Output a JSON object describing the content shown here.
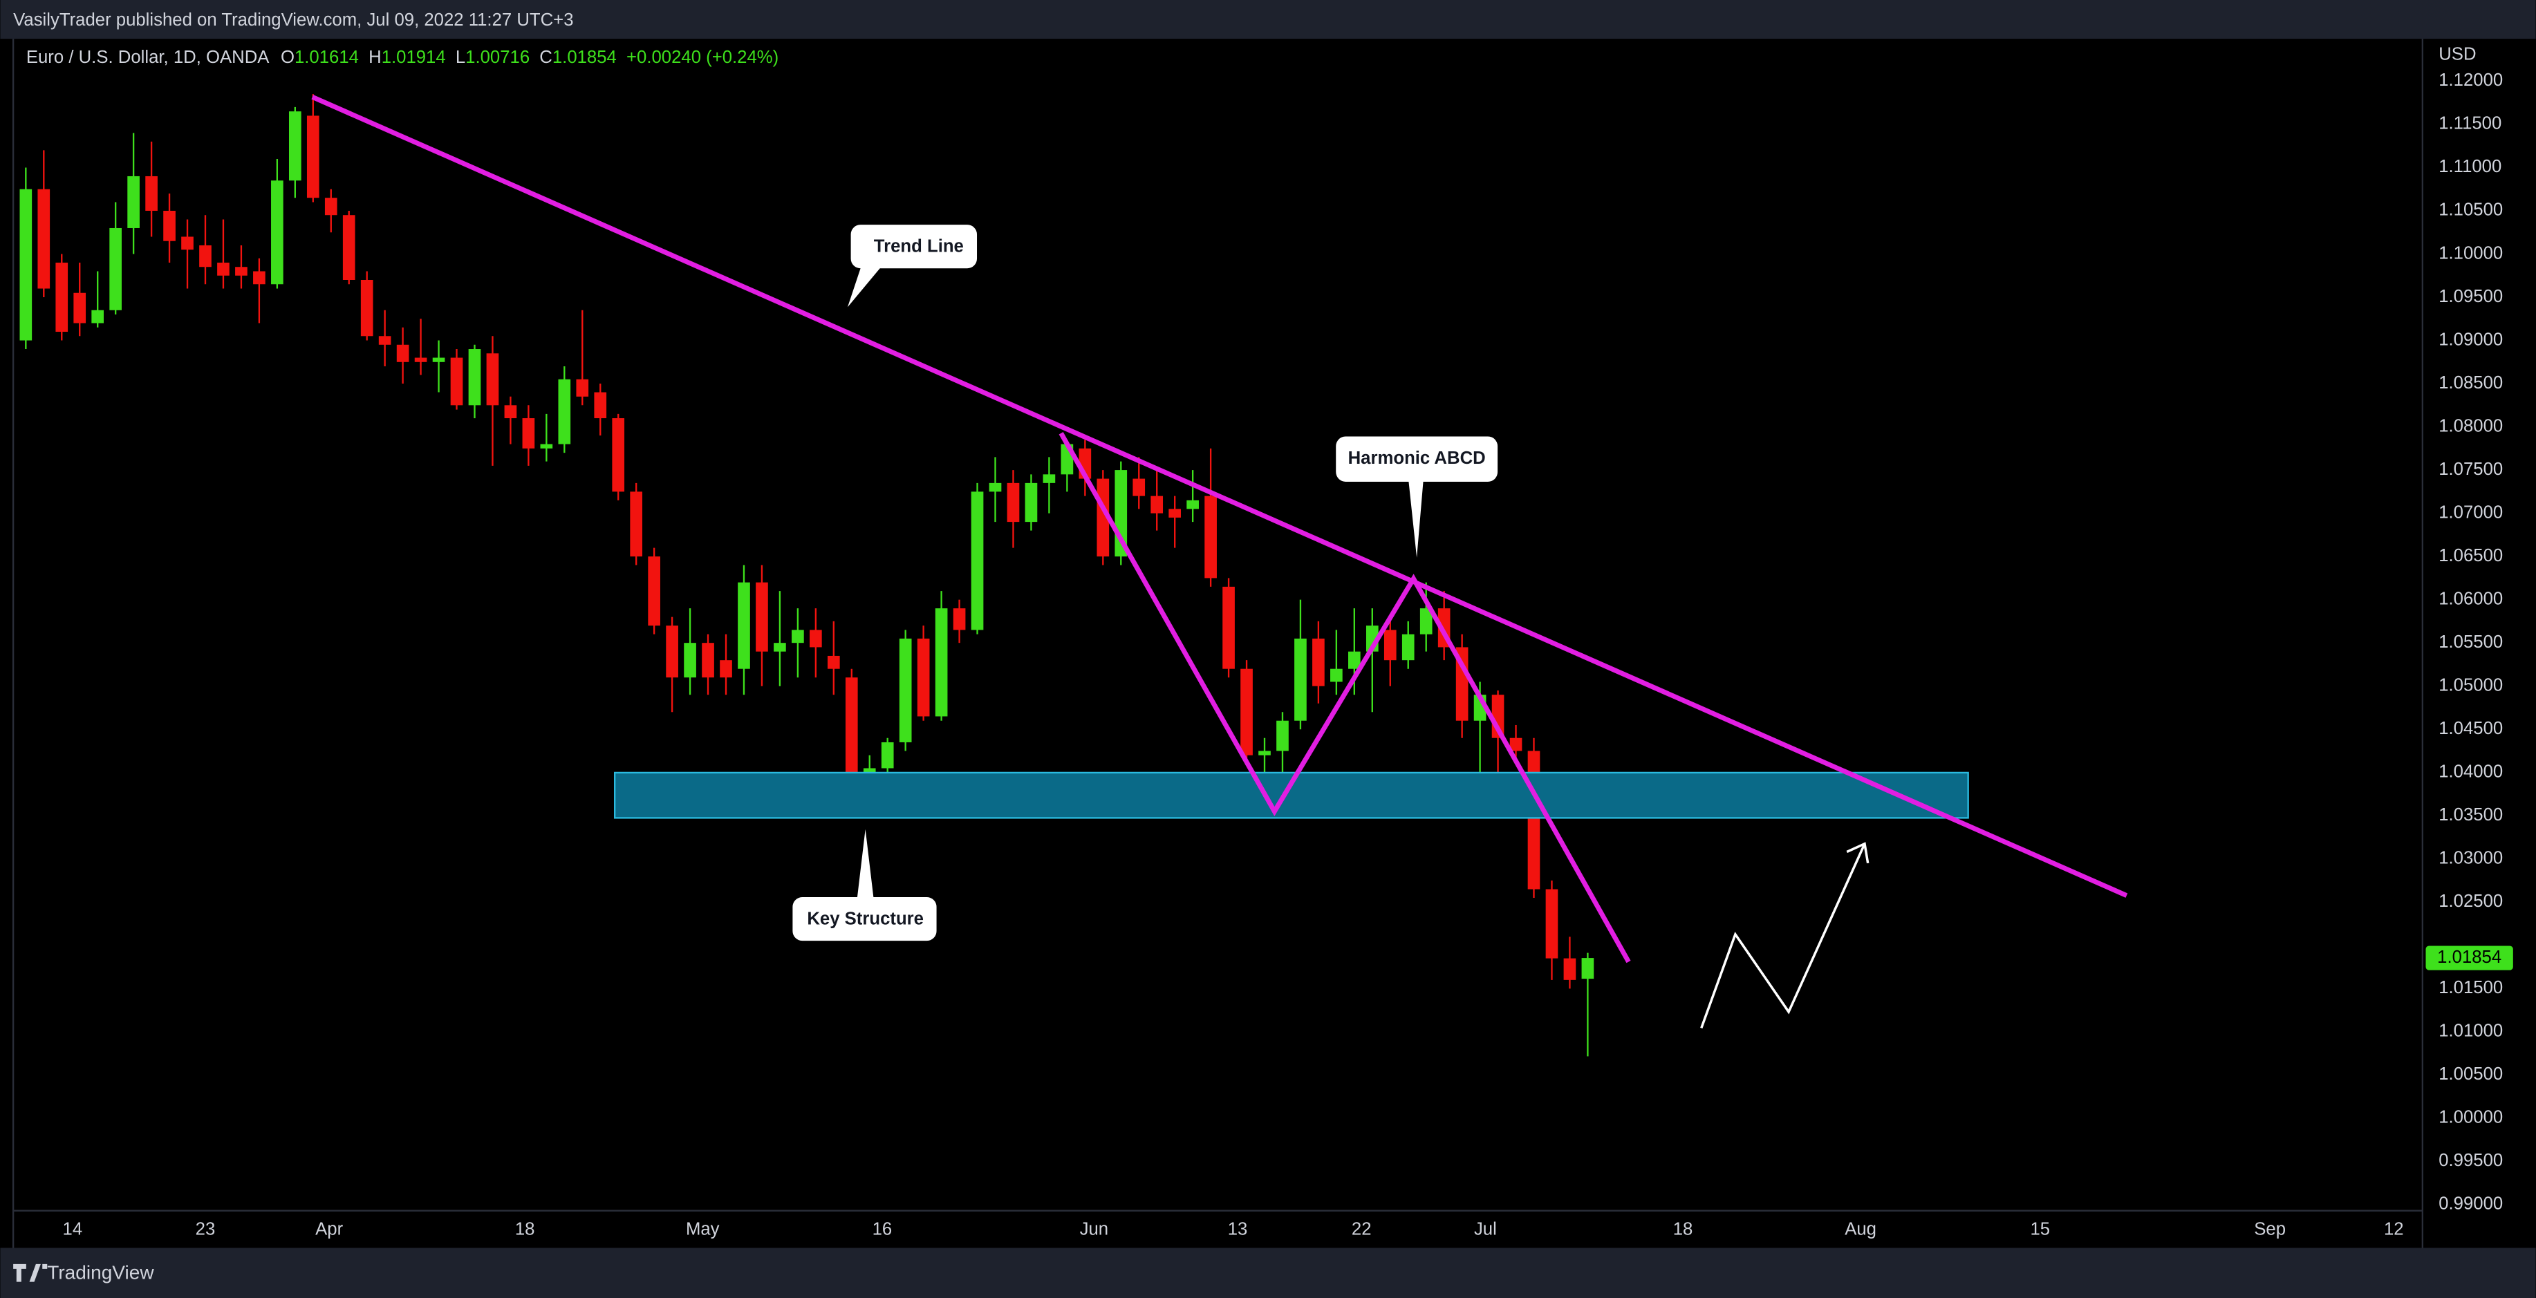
{
  "header": {
    "publisher": "VasilyTrader published on TradingView.com, Jul 09, 2022 11:27 UTC+3",
    "brand": "TradingView"
  },
  "chart_data": {
    "type": "candlestick",
    "title": "Euro / U.S. Dollar, 1D, OANDA",
    "ohlc_keys": [
      "O",
      "H",
      "L",
      "C"
    ],
    "change": "+0.00240 (+0.24%)",
    "currency": "USD",
    "up_color": "#3ee01c",
    "down_color": "#f2130f",
    "grid": false,
    "xlim": [
      -0.7,
      133.5
    ],
    "xticks": [
      {
        "value": 2.6,
        "label": "14"
      },
      {
        "value": 10.0,
        "label": "23"
      },
      {
        "value": 16.9,
        "label": "Apr"
      },
      {
        "value": 27.8,
        "label": "18"
      },
      {
        "value": 37.7,
        "label": "May"
      },
      {
        "value": 47.7,
        "label": "16"
      },
      {
        "value": 59.5,
        "label": "Jun"
      },
      {
        "value": 67.5,
        "label": "13"
      },
      {
        "value": 74.4,
        "label": "22"
      },
      {
        "value": 81.3,
        "label": "Jul"
      },
      {
        "value": 92.3,
        "label": "18"
      },
      {
        "value": 102.2,
        "label": "Aug"
      },
      {
        "value": 112.2,
        "label": "15"
      },
      {
        "value": 125.0,
        "label": "Sep"
      },
      {
        "value": 131.9,
        "label": "12"
      }
    ],
    "ylim": [
      0.9893,
      1.1249
    ],
    "yticks": [
      {
        "value": 1.12,
        "label": "1.12000"
      },
      {
        "value": 1.115,
        "label": "1.11500"
      },
      {
        "value": 1.11,
        "label": "1.11000"
      },
      {
        "value": 1.105,
        "label": "1.10500"
      },
      {
        "value": 1.1,
        "label": "1.10000"
      },
      {
        "value": 1.095,
        "label": "1.09500"
      },
      {
        "value": 1.09,
        "label": "1.09000"
      },
      {
        "value": 1.085,
        "label": "1.08500"
      },
      {
        "value": 1.08,
        "label": "1.08000"
      },
      {
        "value": 1.075,
        "label": "1.07500"
      },
      {
        "value": 1.07,
        "label": "1.07000"
      },
      {
        "value": 1.065,
        "label": "1.06500"
      },
      {
        "value": 1.06,
        "label": "1.06000"
      },
      {
        "value": 1.055,
        "label": "1.05500"
      },
      {
        "value": 1.05,
        "label": "1.05000"
      },
      {
        "value": 1.045,
        "label": "1.04500"
      },
      {
        "value": 1.04,
        "label": "1.04000"
      },
      {
        "value": 1.035,
        "label": "1.03500"
      },
      {
        "value": 1.03,
        "label": "1.03000"
      },
      {
        "value": 1.025,
        "label": "1.02500"
      },
      {
        "value": 1.015,
        "label": "1.01500"
      },
      {
        "value": 1.01,
        "label": "1.01000"
      },
      {
        "value": 1.005,
        "label": "1.00500"
      },
      {
        "value": 1.0,
        "label": "1.00000"
      },
      {
        "value": 0.995,
        "label": "0.99500"
      },
      {
        "value": 0.99,
        "label": "0.99000"
      }
    ],
    "open": [
      1.09,
      1.1075,
      1.099,
      1.0955,
      1.092,
      1.0935,
      1.103,
      1.109,
      1.105,
      1.102,
      1.101,
      1.099,
      1.0985,
      1.098,
      1.0965,
      1.1085,
      1.116,
      1.1065,
      1.1045,
      1.097,
      1.0905,
      1.0895,
      1.088,
      1.0875,
      1.088,
      1.0825,
      1.0885,
      1.0825,
      1.081,
      1.0775,
      1.078,
      1.0855,
      1.084,
      1.081,
      1.0725,
      1.065,
      1.057,
      1.051,
      1.055,
      1.053,
      1.052,
      1.062,
      1.054,
      1.055,
      1.0565,
      1.0535,
      1.051,
      1.038,
      1.0405,
      1.0435,
      1.0555,
      1.0465,
      1.059,
      1.0565,
      1.0725,
      1.0735,
      1.069,
      1.0735,
      1.0745,
      1.0775,
      1.074,
      1.065,
      1.074,
      1.072,
      1.0705,
      1.0705,
      1.072,
      1.0615,
      1.052,
      1.042,
      1.0425,
      1.046,
      1.0555,
      1.0505,
      1.052,
      1.054,
      1.0565,
      1.053,
      1.056,
      1.059,
      1.0545,
      1.046,
      1.049,
      1.044,
      1.0425,
      1.0265,
      1.0185,
      1.01614
    ],
    "high": [
      1.11,
      1.112,
      1.1,
      1.099,
      1.098,
      1.106,
      1.114,
      1.113,
      1.107,
      1.104,
      1.1045,
      1.104,
      1.101,
      1.0995,
      1.111,
      1.117,
      1.1185,
      1.1075,
      1.105,
      1.098,
      1.0935,
      1.0915,
      1.0925,
      1.09,
      1.089,
      1.0895,
      1.0905,
      1.0835,
      1.0825,
      1.0815,
      1.087,
      1.0935,
      1.085,
      1.0815,
      1.0735,
      1.066,
      1.058,
      1.059,
      1.056,
      1.056,
      1.064,
      1.064,
      1.061,
      1.059,
      1.059,
      1.0575,
      1.052,
      1.042,
      1.044,
      1.0565,
      1.057,
      1.061,
      1.06,
      1.0735,
      1.0765,
      1.075,
      1.0745,
      1.0765,
      1.0785,
      1.0785,
      1.075,
      1.076,
      1.0765,
      1.075,
      1.072,
      1.075,
      1.0775,
      1.0625,
      1.053,
      1.044,
      1.047,
      1.06,
      1.0575,
      1.0565,
      1.059,
      1.059,
      1.0575,
      1.0575,
      1.062,
      1.061,
      1.056,
      1.0505,
      1.0495,
      1.0455,
      1.044,
      1.0275,
      1.021,
      1.01914
    ],
    "low": [
      1.089,
      1.095,
      1.09,
      1.0905,
      1.0915,
      1.093,
      1.1,
      1.102,
      1.099,
      1.096,
      1.0965,
      1.096,
      1.096,
      1.092,
      1.096,
      1.1065,
      1.106,
      1.1025,
      1.0965,
      1.09,
      1.087,
      1.085,
      1.086,
      1.084,
      1.082,
      1.081,
      1.0755,
      1.078,
      1.0755,
      1.076,
      1.077,
      1.0825,
      1.079,
      1.0715,
      1.064,
      1.056,
      1.047,
      1.049,
      1.049,
      1.049,
      1.049,
      1.05,
      1.05,
      1.051,
      1.051,
      1.049,
      1.0355,
      1.035,
      1.0385,
      1.0425,
      1.046,
      1.046,
      1.055,
      1.056,
      1.069,
      1.066,
      1.068,
      1.07,
      1.0725,
      1.072,
      1.064,
      1.064,
      1.0705,
      1.068,
      1.066,
      1.069,
      1.0615,
      1.051,
      1.041,
      1.0395,
      1.0355,
      1.045,
      1.048,
      1.049,
      1.049,
      1.047,
      1.05,
      1.052,
      1.054,
      1.053,
      1.044,
      1.0395,
      1.0385,
      1.0415,
      1.0255,
      1.016,
      1.015,
      1.00716
    ],
    "close": [
      1.1075,
      1.096,
      1.091,
      1.092,
      1.0935,
      1.103,
      1.109,
      1.105,
      1.1015,
      1.1005,
      1.0985,
      1.0975,
      1.0975,
      1.0965,
      1.1085,
      1.1165,
      1.1065,
      1.1045,
      1.097,
      1.0905,
      1.0895,
      1.0875,
      1.0875,
      1.088,
      1.0825,
      1.089,
      1.0825,
      1.081,
      1.0775,
      1.078,
      1.0855,
      1.0835,
      1.081,
      1.0725,
      1.065,
      1.057,
      1.051,
      1.055,
      1.051,
      1.051,
      1.062,
      1.054,
      1.055,
      1.0565,
      1.0545,
      1.052,
      1.038,
      1.0405,
      1.0435,
      1.0555,
      1.0465,
      1.059,
      1.0565,
      1.0725,
      1.0735,
      1.069,
      1.0735,
      1.0745,
      1.078,
      1.074,
      1.065,
      1.075,
      1.072,
      1.07,
      1.0695,
      1.0715,
      1.0625,
      1.052,
      1.042,
      1.0425,
      1.046,
      1.0555,
      1.05,
      1.052,
      1.054,
      1.057,
      1.053,
      1.056,
      1.059,
      1.0545,
      1.046,
      1.049,
      1.044,
      1.0425,
      1.0265,
      1.0185,
      1.016,
      1.01854
    ],
    "annotations": [
      "Trend Line",
      "Harmonic ABCD",
      "Key Structure"
    ]
  }
}
